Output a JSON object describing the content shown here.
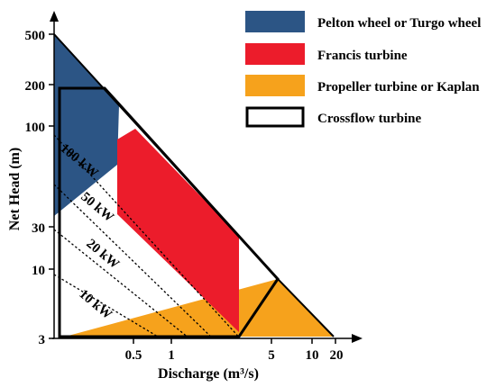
{
  "chart_data": {
    "type": "area",
    "x_axis": {
      "label": "Discharge (m³/s)",
      "ticks": [
        "0.5",
        "1",
        "5",
        "10",
        "20"
      ],
      "scale": "log"
    },
    "y_axis": {
      "label": "Net Head (m)",
      "ticks": [
        "3",
        "10",
        "30",
        "100",
        "200",
        "500"
      ],
      "scale": "log"
    },
    "legend": {
      "placement": "top-right",
      "entries": [
        {
          "label": "Pelton wheel or Turgo wheel",
          "color": "#2c5585",
          "style": "filled"
        },
        {
          "label": "Francis turbine",
          "color": "#ec1c2b",
          "style": "filled"
        },
        {
          "label": "Propeller turbine or Kaplan",
          "color": "#f6a21c",
          "style": "filled"
        },
        {
          "label": "Crossflow turbine",
          "color": "#000000",
          "style": "outline"
        }
      ]
    },
    "power_lines": [
      {
        "label": "100 kW"
      },
      {
        "label": "50 kW"
      },
      {
        "label": "20 kW"
      },
      {
        "label": "10 kW"
      }
    ]
  }
}
